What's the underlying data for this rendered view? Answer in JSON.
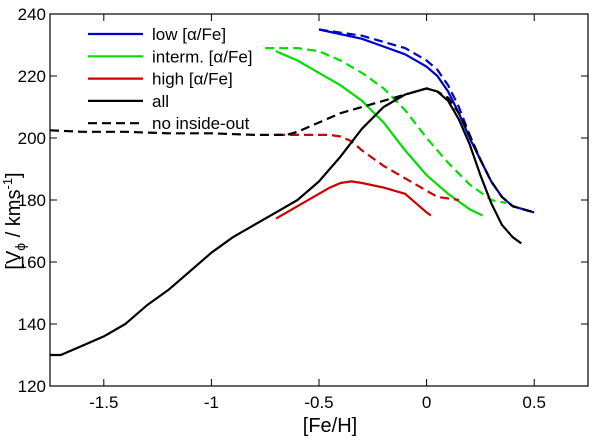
{
  "chart_data": {
    "type": "line",
    "xlabel": "[Fe/H]",
    "ylabel": {
      "main": "[V",
      "sub": "ϕ",
      "mid": " / kms",
      "sup": "-1",
      "end": "]"
    },
    "xlim": [
      -1.75,
      0.75
    ],
    "ylim": [
      120,
      240
    ],
    "x_ticks": [
      -1.5,
      -1,
      -0.5,
      0,
      0.5
    ],
    "x_tick_labels": [
      "-1.5",
      "-1",
      "-0.5",
      "0",
      "0.5"
    ],
    "y_ticks": [
      120,
      140,
      160,
      180,
      200,
      220,
      240
    ],
    "y_tick_labels": [
      "120",
      "140",
      "160",
      "180",
      "200",
      "220",
      "240"
    ],
    "grid": false,
    "legend_position": "top-left",
    "series": [
      {
        "name": "low [α/Fe]",
        "color": "#0000cc",
        "dash": "solid",
        "x": [
          -0.5,
          -0.3,
          -0.1,
          0.0,
          0.05,
          0.1,
          0.15,
          0.2,
          0.25,
          0.3,
          0.35,
          0.4,
          0.45,
          0.5
        ],
        "y": [
          235,
          232,
          227,
          223,
          220,
          215,
          208,
          200,
          193,
          186,
          181,
          178,
          177,
          176
        ]
      },
      {
        "name": "",
        "color": "#0000cc",
        "dash": "dashed",
        "x": [
          -0.5,
          -0.3,
          -0.1,
          0.0,
          0.05,
          0.1,
          0.15,
          0.2,
          0.25,
          0.3,
          0.35,
          0.4,
          0.45,
          0.5
        ],
        "y": [
          235,
          233,
          229,
          225,
          222,
          217,
          210,
          201,
          193,
          186,
          181,
          178,
          177,
          176
        ]
      },
      {
        "name": "interm. [α/Fe]",
        "color": "#00dd00",
        "dash": "solid",
        "x": [
          -0.7,
          -0.6,
          -0.5,
          -0.4,
          -0.3,
          -0.2,
          -0.1,
          0.0,
          0.1,
          0.2,
          0.26
        ],
        "y": [
          228,
          225,
          221,
          217,
          212,
          205,
          196,
          188,
          182,
          177,
          175
        ]
      },
      {
        "name": "",
        "color": "#00dd00",
        "dash": "dashed",
        "x": [
          -0.75,
          -0.6,
          -0.5,
          -0.4,
          -0.3,
          -0.2,
          -0.1,
          0.0,
          0.1,
          0.2,
          0.3,
          0.37
        ],
        "y": [
          229,
          229,
          228,
          225,
          221,
          216,
          209,
          200,
          192,
          185,
          180,
          179
        ]
      },
      {
        "name": "high [α/Fe]",
        "color": "#cc0000",
        "dash": "solid",
        "x": [
          -0.7,
          -0.6,
          -0.5,
          -0.45,
          -0.4,
          -0.35,
          -0.3,
          -0.2,
          -0.1,
          0.0,
          0.02
        ],
        "y": [
          174,
          178,
          182,
          184,
          185.5,
          186,
          185.5,
          184,
          182,
          176,
          175
        ]
      },
      {
        "name": "",
        "color": "#cc0000",
        "dash": "dashed",
        "x": [
          -0.7,
          -0.6,
          -0.5,
          -0.45,
          -0.4,
          -0.35,
          -0.3,
          -0.2,
          -0.1,
          0.0,
          0.05,
          0.15
        ],
        "y": [
          201,
          201,
          201,
          201,
          200.5,
          199,
          196,
          191,
          187,
          183,
          181,
          180
        ]
      },
      {
        "name": "all",
        "color": "#000000",
        "dash": "solid",
        "x": [
          -1.75,
          -1.7,
          -1.6,
          -1.5,
          -1.4,
          -1.3,
          -1.2,
          -1.1,
          -1.0,
          -0.9,
          -0.8,
          -0.7,
          -0.6,
          -0.5,
          -0.4,
          -0.3,
          -0.2,
          -0.1,
          0.0,
          0.05,
          0.1,
          0.15,
          0.2,
          0.25,
          0.3,
          0.35,
          0.4,
          0.44
        ],
        "y": [
          130,
          130,
          133,
          136,
          140,
          146,
          151,
          157,
          163,
          168,
          172,
          176,
          180,
          186,
          194,
          203,
          210,
          214,
          216,
          215,
          212,
          206,
          198,
          188,
          179,
          172,
          168,
          166
        ]
      },
      {
        "name": "no inside-out",
        "color": "#000000",
        "dash": "dashed",
        "x": [
          -1.75,
          -1.6,
          -1.4,
          -1.2,
          -1.0,
          -0.8,
          -0.7,
          -0.65,
          -0.6,
          -0.5,
          -0.4,
          -0.3,
          -0.2,
          -0.1,
          0.0,
          0.05,
          0.1,
          0.15,
          0.2,
          0.25,
          0.3,
          0.35,
          0.4,
          0.45,
          0.5
        ],
        "y": [
          202.5,
          202,
          202,
          201.5,
          201.5,
          201,
          201,
          201,
          202,
          205,
          208,
          210,
          212,
          214,
          216,
          215,
          213,
          208,
          201,
          193,
          186,
          181,
          178,
          177,
          176
        ]
      }
    ],
    "legend": [
      {
        "label": "low [α/Fe]",
        "color": "#0000cc",
        "dash": "solid"
      },
      {
        "label": "interm. [α/Fe]",
        "color": "#00dd00",
        "dash": "solid"
      },
      {
        "label": "high [α/Fe]",
        "color": "#cc0000",
        "dash": "solid"
      },
      {
        "label": "all",
        "color": "#000000",
        "dash": "solid"
      },
      {
        "label": "no inside-out",
        "color": "#000000",
        "dash": "dashed"
      }
    ]
  }
}
